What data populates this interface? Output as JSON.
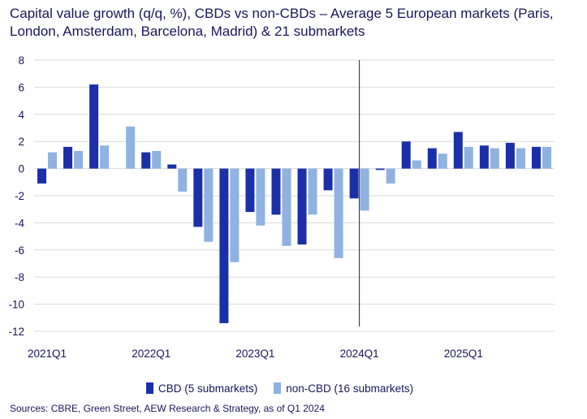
{
  "title": "Capital value growth (q/q, %), CBDs vs non-CBDs – Average 5 European markets (Paris, London, Amsterdam, Barcelona, Madrid) & 21 submarkets",
  "source": "Sources: CBRE, Green Street, AEW Research & Strategy, as of Q1 2024",
  "colors": {
    "cbd": "#1b2fa8",
    "noncbd": "#8fb2e0",
    "grid": "#d9d9d9",
    "divider": "#1d1d4f"
  },
  "chart_data": {
    "type": "bar",
    "xlabel": "",
    "ylabel": "",
    "ylim": [
      -12,
      8
    ],
    "yticks": [
      8,
      6,
      4,
      2,
      0,
      -2,
      -4,
      -6,
      -8,
      -10,
      -12
    ],
    "grid": true,
    "legend_position": "bottom",
    "categories": [
      "2021Q1",
      "2021Q2",
      "2021Q3",
      "2021Q4",
      "2022Q1",
      "2022Q2",
      "2022Q3",
      "2022Q4",
      "2023Q1",
      "2023Q2",
      "2023Q3",
      "2023Q4",
      "2024Q1",
      "2024Q2",
      "2024Q3",
      "2024Q4",
      "2025Q1",
      "2025Q2",
      "2025Q3",
      "2025Q4"
    ],
    "xtick_labels": [
      {
        "category": "2021Q1",
        "label": "2021Q1"
      },
      {
        "category": "2022Q1",
        "label": "2022Q1"
      },
      {
        "category": "2023Q1",
        "label": "2023Q1"
      },
      {
        "category": "2024Q1",
        "label": "2024Q1"
      },
      {
        "category": "2025Q1",
        "label": "2025Q1"
      }
    ],
    "divider_after_category": "2024Q1",
    "series": [
      {
        "name": "CBD (5 submarkets)",
        "color": "#1b2fa8",
        "values": [
          -1.1,
          1.6,
          6.2,
          null,
          1.2,
          0.3,
          -4.3,
          -11.4,
          -3.2,
          -3.4,
          -5.6,
          -1.6,
          -2.2,
          -0.1,
          2.0,
          1.5,
          2.7,
          1.7,
          1.9,
          1.6
        ]
      },
      {
        "name": "non-CBD (16 submarkets)",
        "color": "#8fb2e0",
        "values": [
          1.2,
          1.3,
          1.7,
          3.1,
          1.3,
          -1.7,
          -5.4,
          -6.9,
          -4.2,
          -5.7,
          -3.4,
          -6.6,
          -3.1,
          -1.1,
          0.6,
          1.1,
          1.6,
          1.5,
          1.5,
          1.6
        ]
      }
    ]
  }
}
